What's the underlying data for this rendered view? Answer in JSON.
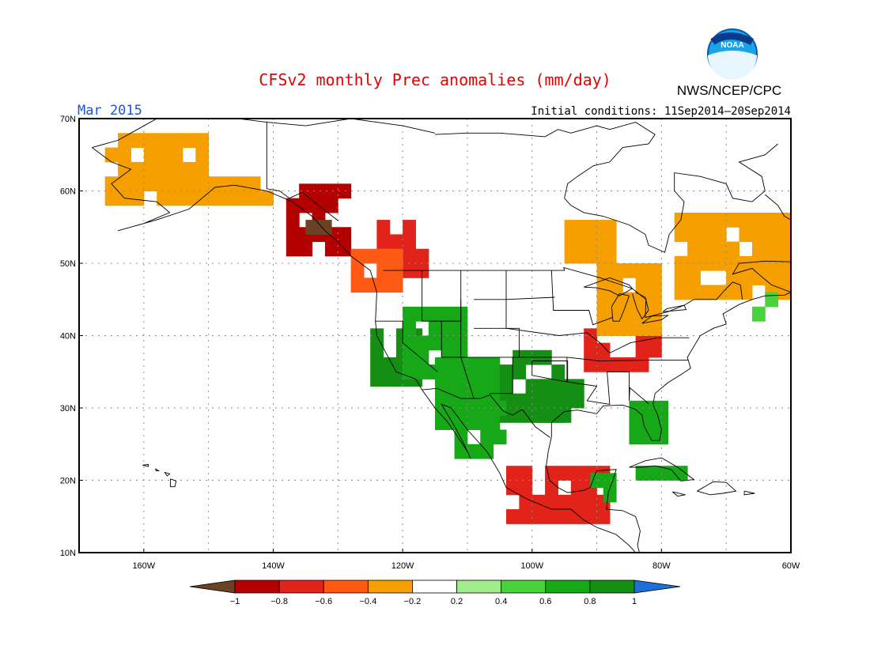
{
  "title": "CFSv2 monthly Prec anomalies (mm/day)",
  "month": "Mar 2015",
  "initial_conditions": "Initial conditions: 11Sep2014–20Sep2014",
  "agency": "NWS/NCEP/CPC",
  "logo_text": "NOAA",
  "colors": {
    "title": "#e60000",
    "month": "#1a55d6",
    "land_outline": "#000000",
    "grid": "#8c8c8c"
  },
  "map": {
    "lon_range": [
      -170,
      -60
    ],
    "lat_range": [
      10,
      70
    ],
    "lat_labels": [
      "70N",
      "60N",
      "50N",
      "40N",
      "30N",
      "20N",
      "10N"
    ],
    "lon_labels": [
      "160W",
      "140W",
      "120W",
      "100W",
      "80W",
      "60W"
    ]
  },
  "colorbar": {
    "ticks": [
      "−1",
      "−0.8",
      "−0.6",
      "−0.4",
      "−0.2",
      "0.2",
      "0.4",
      "0.6",
      "0.8",
      "1"
    ],
    "colors": [
      "#6b4226",
      "#b30000",
      "#e2231a",
      "#ff5a14",
      "#f5a000",
      "#ffffff",
      "#a0ec8c",
      "#4ad23c",
      "#16a816",
      "#148f14",
      "#1e6fd9"
    ]
  },
  "anomaly_regions": [
    {
      "name": "alaska-west-dry",
      "lon": [
        -166,
        -150
      ],
      "lat": [
        58,
        68
      ],
      "value": -0.3
    },
    {
      "name": "alaska-south-dry",
      "lon": [
        -150,
        -140
      ],
      "lat": [
        58,
        62
      ],
      "value": -0.3
    },
    {
      "name": "bc-coast-very-dry",
      "lon": [
        -138,
        -128
      ],
      "lat": [
        51,
        60
      ],
      "value": -0.8
    },
    {
      "name": "bc-coast-core",
      "lon": [
        -135,
        -131
      ],
      "lat": [
        54,
        57
      ],
      "value": -1.0
    },
    {
      "name": "bc-interior-dry",
      "lon": [
        -124,
        -116
      ],
      "lat": [
        48,
        55
      ],
      "value": -0.7
    },
    {
      "name": "pacific-nw-dry",
      "lon": [
        -128,
        -120
      ],
      "lat": [
        46,
        52
      ],
      "value": -0.5
    },
    {
      "name": "california-wet",
      "lon": [
        -125,
        -118
      ],
      "lat": [
        33,
        40
      ],
      "value": 1.0
    },
    {
      "name": "great-basin-wet",
      "lon": [
        -120,
        -110
      ],
      "lat": [
        34,
        44
      ],
      "value": 0.7
    },
    {
      "name": "southwest-wet",
      "lon": [
        -115,
        -105
      ],
      "lat": [
        27,
        37
      ],
      "value": 0.8
    },
    {
      "name": "south-plains-wet",
      "lon": [
        -105,
        -95
      ],
      "lat": [
        28,
        38
      ],
      "value": 0.9
    },
    {
      "name": "texas-wet",
      "lon": [
        -100,
        -93
      ],
      "lat": [
        28,
        34
      ],
      "value": 1.0
    },
    {
      "name": "nw-mexico-wet",
      "lon": [
        -112,
        -104
      ],
      "lat": [
        23,
        30
      ],
      "value": 0.8
    },
    {
      "name": "ohio-valley-dry",
      "lon": [
        -92,
        -80
      ],
      "lat": [
        35,
        40
      ],
      "value": -0.6
    },
    {
      "name": "great-lakes-dry",
      "lon": [
        -90,
        -80
      ],
      "lat": [
        40,
        50
      ],
      "value": -0.3
    },
    {
      "name": "quebec-dry",
      "lon": [
        -78,
        -60
      ],
      "lat": [
        45,
        57
      ],
      "value": -0.35
    },
    {
      "name": "florida-wet",
      "lon": [
        -85,
        -80
      ],
      "lat": [
        25,
        30
      ],
      "value": 0.8
    },
    {
      "name": "south-mexico-dry",
      "lon": [
        -104,
        -88
      ],
      "lat": [
        14,
        21
      ],
      "value": -0.6
    },
    {
      "name": "yucatan-wet",
      "lon": [
        -91,
        -87
      ],
      "lat": [
        17,
        21
      ],
      "value": 0.7
    },
    {
      "name": "cuba-wet",
      "lon": [
        -84,
        -76
      ],
      "lat": [
        20,
        22
      ],
      "value": 0.8
    },
    {
      "name": "ontario-dry",
      "lon": [
        -95,
        -88
      ],
      "lat": [
        50,
        55
      ],
      "value": -0.3
    },
    {
      "name": "newfoundland-wet",
      "lon": [
        -66,
        -62
      ],
      "lat": [
        42,
        46
      ],
      "value": 0.5
    }
  ]
}
